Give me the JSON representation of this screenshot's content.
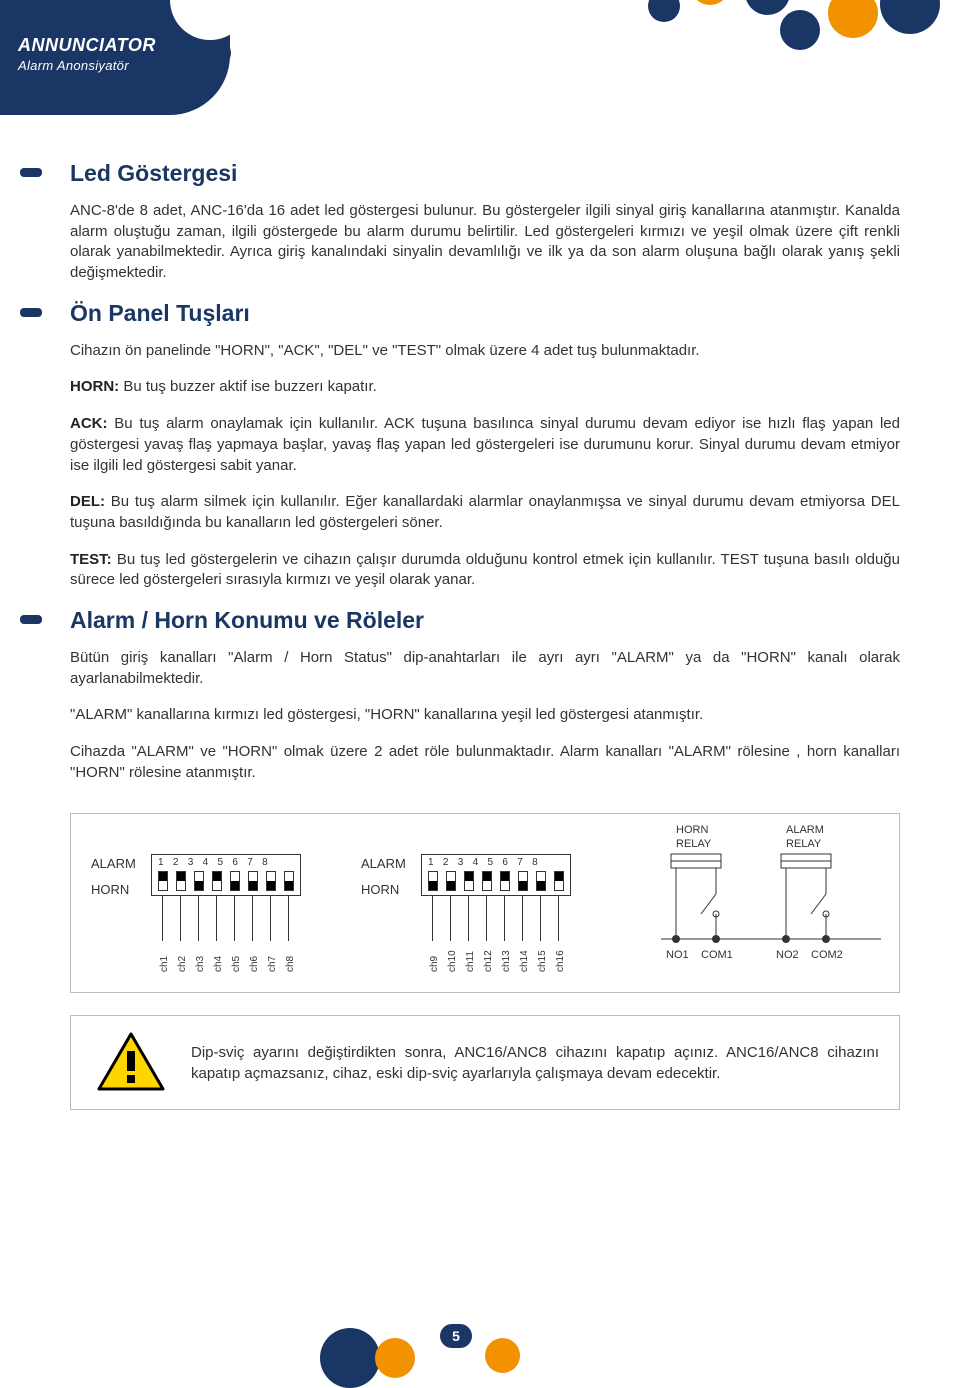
{
  "header": {
    "title": "ANNUNCIATOR",
    "subtitle": "Alarm Anonsiyatör"
  },
  "deco_colors": {
    "navy": "#1a3664",
    "orange": "#f39200"
  },
  "sections": {
    "led": {
      "title": "Led Göstergesi",
      "para1": "ANC-8'de 8 adet, ANC-16'da 16 adet led göstergesi bulunur. Bu göstergeler ilgili sinyal giriş kanallarına atanmıştır. Kanalda alarm oluştuğu zaman, ilgili göstergede bu alarm durumu belirtilir. Led göstergeleri kırmızı ve yeşil olmak üzere çift renkli olarak yanabilmektedir. Ayrıca giriş kanalındaki sinyalin devamlılığı ve ilk ya da son alarm oluşuna bağlı olarak yanış şekli değişmektedir."
    },
    "panel": {
      "title": "Ön Panel Tuşları",
      "intro": "Cihazın ön panelinde \"HORN\", \"ACK\", \"DEL\" ve \"TEST\" olmak üzere 4 adet tuş bulunmaktadır.",
      "horn_label": "HORN:",
      "horn": " Bu tuş buzzer aktif ise buzzerı kapatır.",
      "ack_label": "ACK:",
      "ack": " Bu tuş alarm onaylamak için kullanılır. ACK tuşuna basılınca sinyal durumu devam ediyor ise hızlı flaş yapan led göstergesi yavaş flaş yapmaya başlar, yavaş flaş yapan led göstergeleri ise durumunu korur. Sinyal durumu devam etmiyor ise ilgili led göstergesi sabit yanar.",
      "del_label": "DEL:",
      "del": " Bu tuş alarm silmek için kullanılır. Eğer kanallardaki alarmlar onaylanmışsa ve sinyal durumu devam etmiyorsa DEL tuşuna basıldığında bu kanalların led göstergeleri söner.",
      "test_label": "TEST:",
      "test": " Bu tuş led göstergelerin ve cihazın çalışır durumda olduğunu kontrol etmek için kullanılır. TEST tuşuna basılı olduğu sürece led göstergeleri sırasıyla kırmızı ve yeşil olarak yanar."
    },
    "relay": {
      "title": "Alarm / Horn Konumu ve Röleler",
      "para1": "Bütün giriş kanalları \"Alarm / Horn Status\" dip-anahtarları ile ayrı ayrı \"ALARM\" ya da \"HORN\" kanalı olarak ayarlanabilmektedir.",
      "para2": "\"ALARM\" kanallarına kırmızı led göstergesi, \"HORN\" kanallarına yeşil led göstergesi atanmıştır.",
      "para3": "Cihazda \"ALARM\" ve \"HORN\" olmak üzere 2 adet röle bulunmaktadır. Alarm kanalları \"ALARM\" rölesine , horn kanalları \"HORN\" rölesine atanmıştır."
    }
  },
  "diagram": {
    "dip": {
      "label_alarm": "ALARM",
      "label_horn": "HORN",
      "numbers": [
        "1",
        "2",
        "3",
        "4",
        "5",
        "6",
        "7",
        "8"
      ],
      "block1": {
        "switches": [
          "up",
          "up",
          "down",
          "up",
          "down",
          "down",
          "down",
          "down"
        ],
        "channels": [
          "ch1",
          "ch2",
          "ch3",
          "ch4",
          "ch5",
          "ch6",
          "ch7",
          "ch8"
        ]
      },
      "block2": {
        "switches": [
          "down",
          "down",
          "up",
          "up",
          "up",
          "down",
          "down",
          "up"
        ],
        "channels": [
          "ch9",
          "ch10",
          "ch11",
          "ch12",
          "ch13",
          "ch14",
          "ch15",
          "ch16"
        ]
      }
    },
    "relay": {
      "horn_label": "HORN\nRELAY",
      "alarm_label": "ALARM\nRELAY",
      "terminals": [
        "NO1",
        "COM1",
        "NO2",
        "COM2"
      ]
    }
  },
  "warning": {
    "text": "Dip-sviç ayarını değiştirdikten sonra, ANC16/ANC8 cihazını kapatıp açınız. ANC16/ANC8 cihazını kapatıp açmazsanız, cihaz, eski dip-sviç ayarlarıyla çalışmaya devam edecektir.",
    "icon_fill": "#ffd500",
    "icon_stroke": "#000000"
  },
  "page_number": "5"
}
